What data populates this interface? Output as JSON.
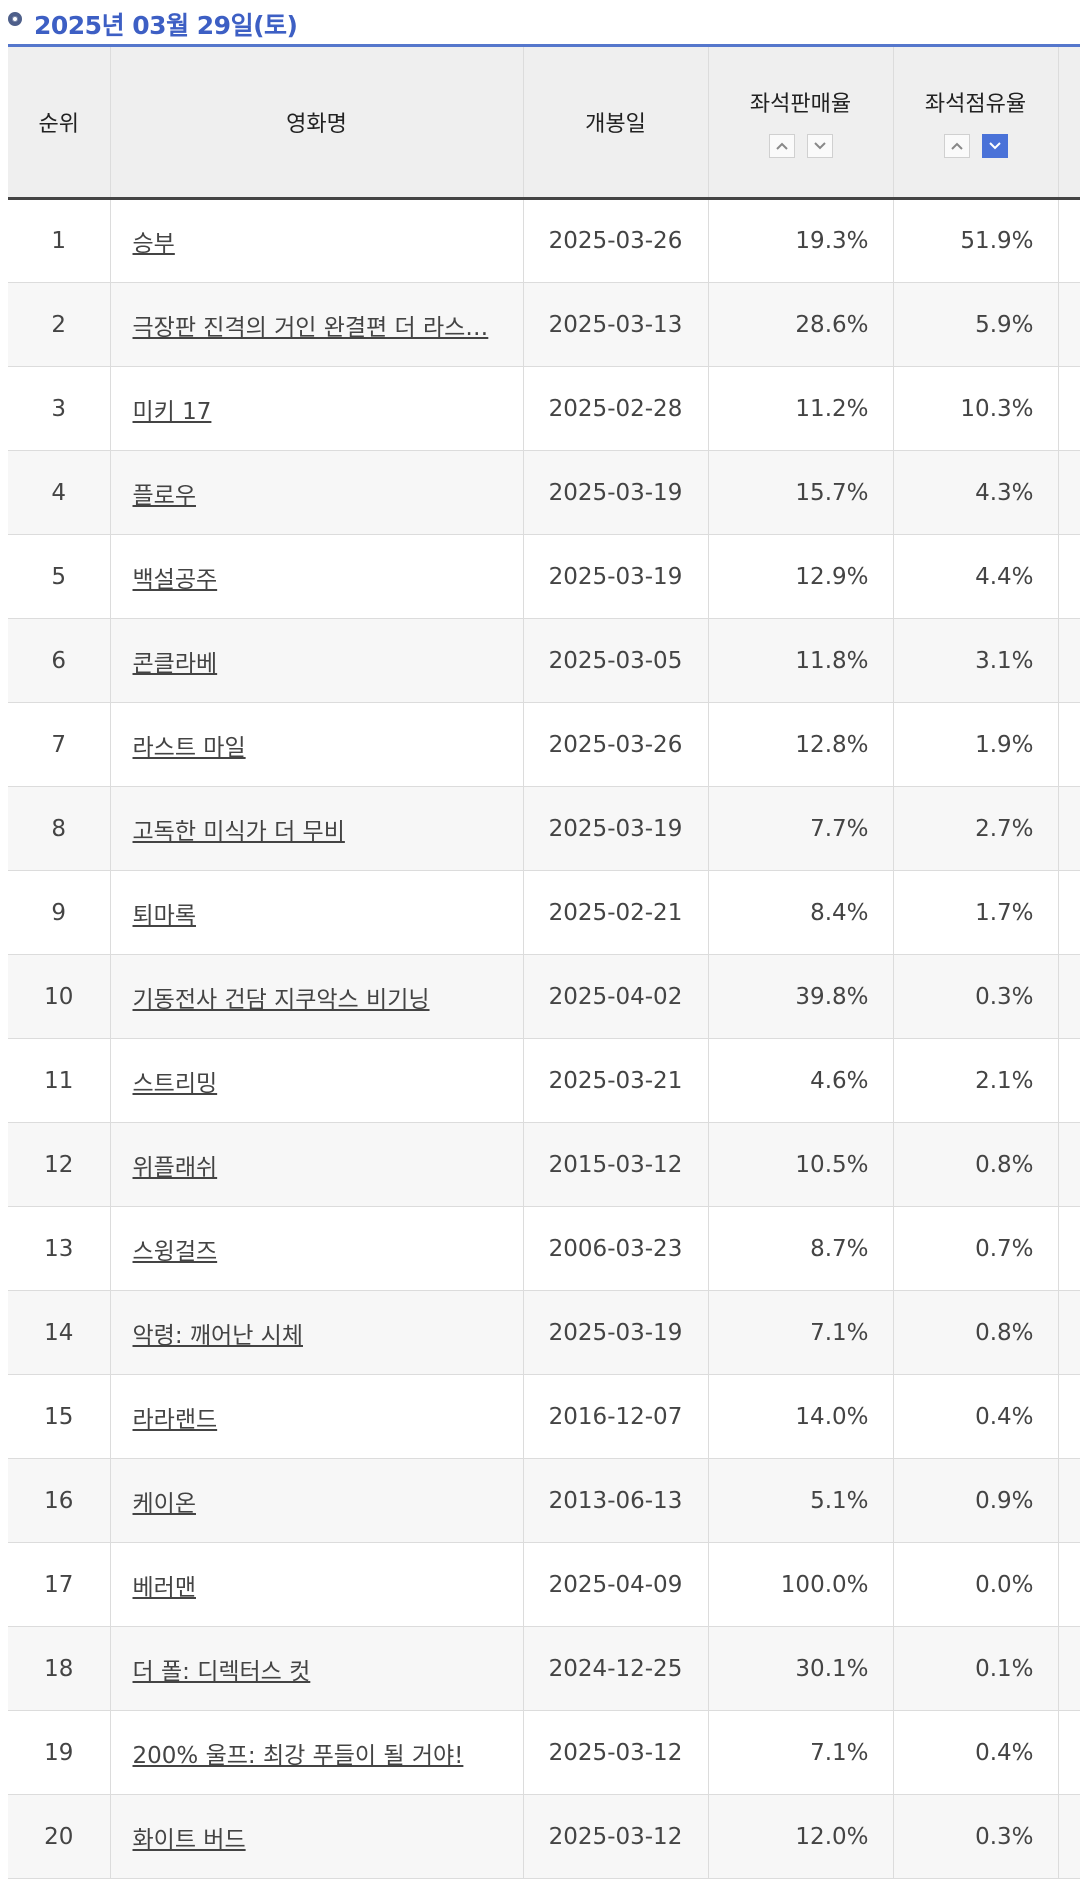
{
  "header": {
    "title": "2025년 03월 29일(토)"
  },
  "table": {
    "columns": {
      "rank": "순위",
      "name": "영화명",
      "date": "개봉일",
      "sales": "좌석판매율",
      "share": "좌석점유율"
    },
    "sort": {
      "sales": "none",
      "share": "desc"
    },
    "rows": [
      {
        "rank": "1",
        "name": "승부",
        "date": "2025-03-26",
        "sales": "19.3%",
        "share": "51.9%"
      },
      {
        "rank": "2",
        "name": "극장판 진격의 거인 완결편 더 라스…",
        "date": "2025-03-13",
        "sales": "28.6%",
        "share": "5.9%"
      },
      {
        "rank": "3",
        "name": "미키 17",
        "date": "2025-02-28",
        "sales": "11.2%",
        "share": "10.3%"
      },
      {
        "rank": "4",
        "name": "플로우",
        "date": "2025-03-19",
        "sales": "15.7%",
        "share": "4.3%"
      },
      {
        "rank": "5",
        "name": "백설공주",
        "date": "2025-03-19",
        "sales": "12.9%",
        "share": "4.4%"
      },
      {
        "rank": "6",
        "name": "콘클라베",
        "date": "2025-03-05",
        "sales": "11.8%",
        "share": "3.1%"
      },
      {
        "rank": "7",
        "name": "라스트 마일",
        "date": "2025-03-26",
        "sales": "12.8%",
        "share": "1.9%"
      },
      {
        "rank": "8",
        "name": "고독한 미식가 더 무비",
        "date": "2025-03-19",
        "sales": "7.7%",
        "share": "2.7%"
      },
      {
        "rank": "9",
        "name": "퇴마록",
        "date": "2025-02-21",
        "sales": "8.4%",
        "share": "1.7%"
      },
      {
        "rank": "10",
        "name": "기동전사 건담 지쿠악스 비기닝",
        "date": "2025-04-02",
        "sales": "39.8%",
        "share": "0.3%"
      },
      {
        "rank": "11",
        "name": "스트리밍",
        "date": "2025-03-21",
        "sales": "4.6%",
        "share": "2.1%"
      },
      {
        "rank": "12",
        "name": "위플래쉬",
        "date": "2015-03-12",
        "sales": "10.5%",
        "share": "0.8%"
      },
      {
        "rank": "13",
        "name": "스윙걸즈",
        "date": "2006-03-23",
        "sales": "8.7%",
        "share": "0.7%"
      },
      {
        "rank": "14",
        "name": "악령: 깨어난 시체",
        "date": "2025-03-19",
        "sales": "7.1%",
        "share": "0.8%"
      },
      {
        "rank": "15",
        "name": "라라랜드",
        "date": "2016-12-07",
        "sales": "14.0%",
        "share": "0.4%"
      },
      {
        "rank": "16",
        "name": "케이온",
        "date": "2013-06-13",
        "sales": "5.1%",
        "share": "0.9%"
      },
      {
        "rank": "17",
        "name": "베러맨",
        "date": "2025-04-09",
        "sales": "100.0%",
        "share": "0.0%"
      },
      {
        "rank": "18",
        "name": "더 폴: 디렉터스 컷",
        "date": "2024-12-25",
        "sales": "30.1%",
        "share": "0.1%"
      },
      {
        "rank": "19",
        "name": "200% 울프: 최강 푸들이 될 거야!",
        "date": "2025-03-12",
        "sales": "7.1%",
        "share": "0.4%"
      },
      {
        "rank": "20",
        "name": "화이트 버드",
        "date": "2025-03-12",
        "sales": "12.0%",
        "share": "0.3%"
      }
    ]
  },
  "colors": {
    "title": "#3d5fc4",
    "accent_line": "#5577cc",
    "sort_active": "#4a72d8"
  },
  "icons": {
    "title_bullet": "circle-bullet-icon",
    "sort_up": "chevron-up-icon",
    "sort_down": "chevron-down-icon"
  }
}
